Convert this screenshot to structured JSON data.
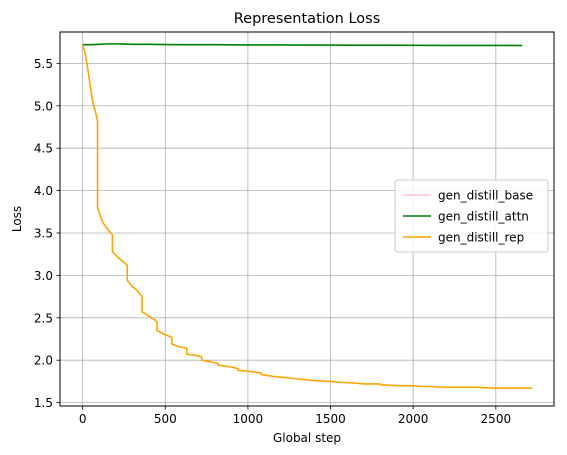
{
  "chart_data": {
    "type": "line",
    "title": "Representation Loss",
    "xlabel": "Global step",
    "ylabel": "Loss",
    "xlim": [
      -137,
      2852
    ],
    "ylim": [
      1.46,
      5.87
    ],
    "xticks": [
      0,
      500,
      1000,
      1500,
      2000,
      2500
    ],
    "yticks": [
      1.5,
      2.0,
      2.5,
      3.0,
      3.5,
      4.0,
      4.5,
      5.0,
      5.5
    ],
    "ytick_labels": [
      "1.5",
      "2.0",
      "2.5",
      "3.0",
      "3.5",
      "4.0",
      "4.5",
      "5.0",
      "5.5"
    ],
    "grid": true,
    "legend_position": "center-right",
    "series": [
      {
        "name": "gen_distill_base",
        "color": "#ffc0cb",
        "x": [],
        "y": []
      },
      {
        "name": "gen_distill_attn",
        "color": "#008000",
        "x": [
          0,
          50,
          100,
          150,
          200,
          250,
          300,
          400,
          500,
          600,
          800,
          1000,
          1200,
          1400,
          1600,
          1800,
          2000,
          2200,
          2400,
          2600,
          2660
        ],
        "y": [
          5.72,
          5.72,
          5.725,
          5.73,
          5.73,
          5.728,
          5.725,
          5.725,
          5.722,
          5.72,
          5.72,
          5.718,
          5.718,
          5.716,
          5.715,
          5.714,
          5.713,
          5.712,
          5.712,
          5.711,
          5.71
        ]
      },
      {
        "name": "gen_distill_rep",
        "color": "#ffa500",
        "x": [
          0,
          15,
          30,
          45,
          60,
          75,
          90,
          90,
          110,
          130,
          150,
          170,
          180,
          180,
          210,
          240,
          270,
          270,
          300,
          330,
          360,
          360,
          400,
          440,
          450,
          450,
          500,
          540,
          540,
          580,
          630,
          630,
          680,
          720,
          720,
          780,
          820,
          820,
          900,
          940,
          940,
          1000,
          1080,
          1080,
          1150,
          1200,
          1250,
          1300,
          1400,
          1500,
          1550,
          1650,
          1700,
          1800,
          1800,
          1900,
          2000,
          2050,
          2100,
          2200,
          2300,
          2400,
          2500,
          2600,
          2720
        ],
        "y": [
          5.72,
          5.62,
          5.45,
          5.25,
          5.05,
          4.95,
          4.82,
          3.8,
          3.68,
          3.6,
          3.55,
          3.5,
          3.48,
          3.28,
          3.22,
          3.17,
          3.12,
          2.94,
          2.87,
          2.82,
          2.75,
          2.57,
          2.52,
          2.47,
          2.45,
          2.35,
          2.3,
          2.27,
          2.19,
          2.16,
          2.14,
          2.07,
          2.06,
          2.04,
          2.0,
          1.98,
          1.96,
          1.94,
          1.92,
          1.9,
          1.88,
          1.87,
          1.85,
          1.83,
          1.81,
          1.8,
          1.79,
          1.78,
          1.76,
          1.75,
          1.74,
          1.73,
          1.72,
          1.72,
          1.71,
          1.7,
          1.7,
          1.69,
          1.69,
          1.68,
          1.68,
          1.68,
          1.67,
          1.67,
          1.67
        ]
      }
    ]
  }
}
